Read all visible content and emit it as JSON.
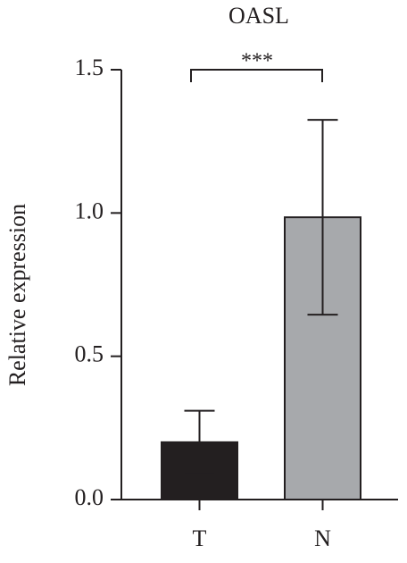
{
  "chart_data": {
    "type": "bar",
    "title": "OASL",
    "y_label": "Relative expression",
    "categories": [
      "T",
      "N"
    ],
    "values": [
      0.2,
      0.985
    ],
    "errors": [
      0.11,
      0.34
    ],
    "colors": [
      "#231f20",
      "#a7a9ac"
    ],
    "ylim": [
      0,
      1.5
    ],
    "yticks": [
      {
        "value": 0,
        "label": "0.0"
      },
      0.5,
      {
        "value": 1,
        "label": "1.0"
      },
      1.5
    ],
    "annotation": "***"
  }
}
